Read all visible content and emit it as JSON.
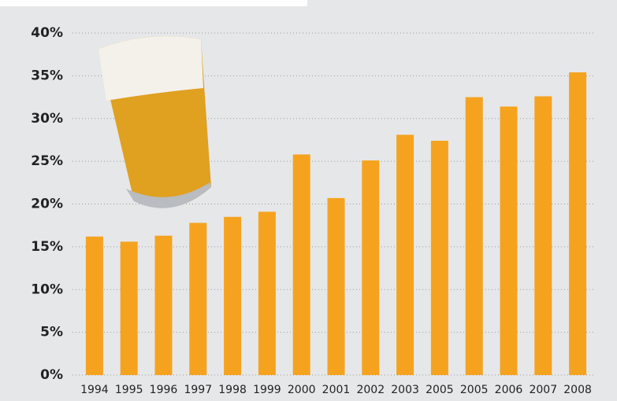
{
  "chart_data": {
    "type": "bar",
    "categories": [
      "1994",
      "1995",
      "1996",
      "1997",
      "1998",
      "1999",
      "2000",
      "2001",
      "2002",
      "2003",
      "2005",
      "2005",
      "2006",
      "2007",
      "2008"
    ],
    "values": [
      16.2,
      15.6,
      16.3,
      17.8,
      18.5,
      19.1,
      25.8,
      20.7,
      25.1,
      28.1,
      27.4,
      32.5,
      31.4,
      32.6,
      35.4
    ],
    "color": "#f5a31f",
    "ylim": [
      0,
      40
    ],
    "yticks": [
      {
        "value": 0,
        "label": "0%"
      },
      {
        "value": 5,
        "label": "5%"
      },
      {
        "value": 10,
        "label": "10%"
      },
      {
        "value": 15,
        "label": "15%"
      },
      {
        "value": 20,
        "label": "20%"
      },
      {
        "value": 25,
        "label": "25%"
      },
      {
        "value": 30,
        "label": "30%"
      },
      {
        "value": 35,
        "label": "35%"
      },
      {
        "value": 40,
        "label": "40%"
      }
    ],
    "grid": true
  }
}
